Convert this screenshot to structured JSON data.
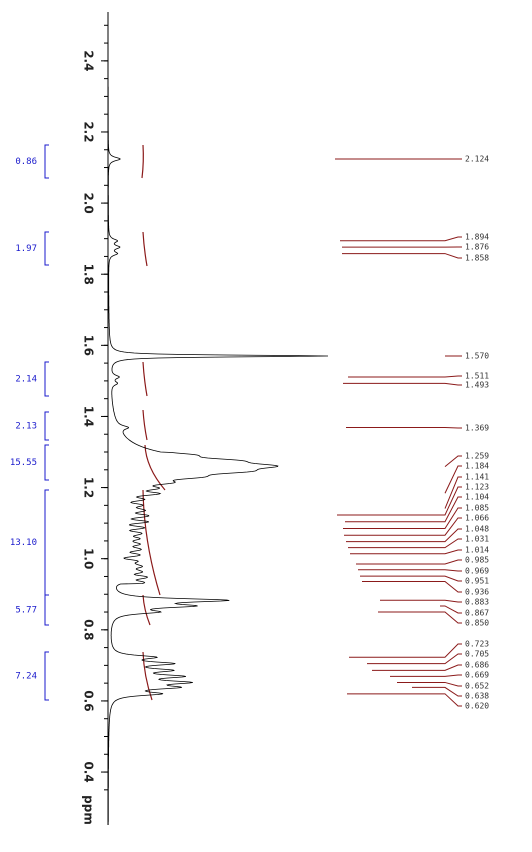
{
  "axis": {
    "ticks": [
      "2.4",
      "2.2",
      "2.0",
      "1.8",
      "1.6",
      "1.4",
      "1.2",
      "1.0",
      "0.8",
      "0.6",
      "0.4"
    ],
    "unit": "ppm"
  },
  "integrals": [
    "0.86",
    "1.97",
    "2.14",
    "2.13",
    "15.55",
    "13.10",
    "5.77",
    "7.24"
  ],
  "peaks": [
    "2.124",
    "1.894",
    "1.876",
    "1.858",
    "1.570",
    "1.511",
    "1.493",
    "1.369",
    "1.259",
    "1.184",
    "1.141",
    "1.123",
    "1.104",
    "1.085",
    "1.066",
    "1.048",
    "1.031",
    "1.014",
    "0.985",
    "0.969",
    "0.951",
    "0.936",
    "0.883",
    "0.867",
    "0.850",
    "0.723",
    "0.705",
    "0.686",
    "0.669",
    "0.652",
    "0.638",
    "0.620"
  ]
}
